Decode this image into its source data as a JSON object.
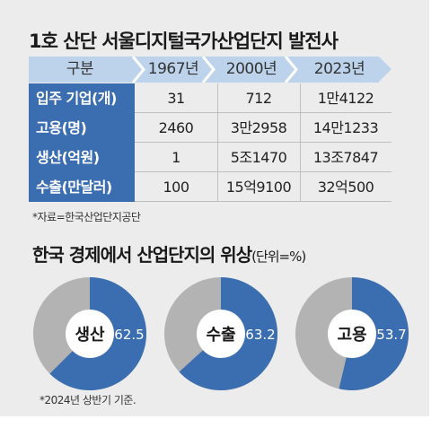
{
  "title": "1호 산단 서울디지털국가산업단지 발전사",
  "table": {
    "header": [
      "구분",
      "1967년",
      "2000년",
      "2023년"
    ],
    "rows": [
      {
        "label": "입주 기업(개)",
        "values": [
          "31",
          "712",
          "1만4122"
        ]
      },
      {
        "label": "고용(명)",
        "values": [
          "2460",
          "3만2958",
          "14만1233"
        ]
      },
      {
        "label": "생산(억원)",
        "values": [
          "1",
          "5조1470",
          "13조7847"
        ]
      },
      {
        "label": "수출(만달러)",
        "values": [
          "100",
          "15억9100",
          "32억500"
        ]
      }
    ],
    "source": "*자료=한국산업단지공단"
  },
  "section": {
    "title": "한국 경제에서 산업단지의 위상",
    "unit": "(단위=%)",
    "note": "*2024년 상반기 기준."
  },
  "colors": {
    "accent": "#3b6db1",
    "header_band": "#bcd3eb",
    "pie_rest": "#b3b3b3",
    "panel_bg": "#ececec"
  },
  "chart_data": {
    "type": "pie",
    "title": "한국 경제에서 산업단지의 위상",
    "unit": "%",
    "charts": [
      {
        "label": "생산",
        "value": 62.5,
        "value_text": "62.5"
      },
      {
        "label": "수출",
        "value": 63.2,
        "value_text": "63.2"
      },
      {
        "label": "고용",
        "value": 53.7,
        "value_text": "53.7"
      }
    ]
  }
}
